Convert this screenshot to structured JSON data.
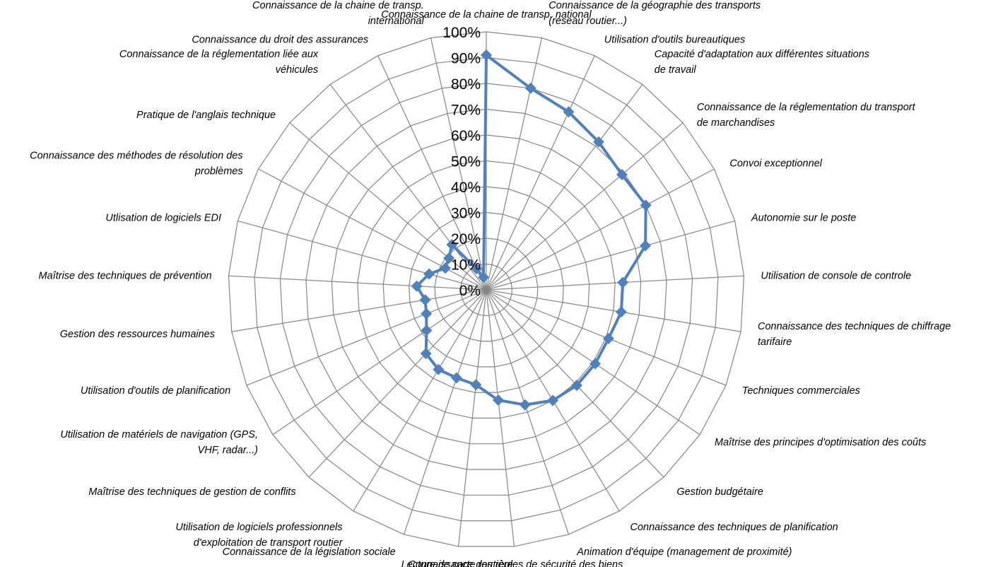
{
  "chart_data": {
    "type": "radar",
    "title": "",
    "grid": true,
    "legend": "none",
    "ylim": [
      0,
      100
    ],
    "tick_labels": [
      "0%",
      "10%",
      "20%",
      "30%",
      "40%",
      "50%",
      "60%",
      "70%",
      "80%",
      "90%",
      "100%"
    ],
    "categories": [
      [
        "Connaissance de la chaine de transp. national"
      ],
      [
        "Connaissance de la géographie des transports",
        "(réseau routier...)"
      ],
      [
        "Utilisation d'outils bureautiques"
      ],
      [
        "Capacité d'adaptation aux différentes situations",
        "de travail"
      ],
      [
        "Connaissance de la réglementation du transport",
        "de marchandises"
      ],
      [
        "Convoi exceptionnel"
      ],
      [
        "Autonomie sur le poste"
      ],
      [
        "Utilisation de console de controle"
      ],
      [
        "Connaissance des techniques de chiffrage",
        "tarifaire"
      ],
      [
        "Techniques commerciales"
      ],
      [
        "Maîtrise des principes d'optimisation des coûts"
      ],
      [
        "Gestion budgétaire"
      ],
      [
        "Connaissance des techniques de planification"
      ],
      [
        "Animation d'équipe (management de proximité)"
      ],
      [
        "Connaissance des règles de sécurité des biens"
      ],
      [
        "Lecture de carte routière"
      ],
      [
        "Connaissance de la législation sociale"
      ],
      [
        "Utilisation de logiciels professionnels",
        "d'exploitation de transport routier"
      ],
      [
        "Maîtrise des techniques de gestion de conflits"
      ],
      [
        "Utilisation de matériels de navigation (GPS,",
        "VHF, radar...)"
      ],
      [
        "Utilisation d'outils de planification"
      ],
      [
        "Gestion des ressources humaines"
      ],
      [
        "Maîtrise des techniques de prévention"
      ],
      [
        "Utlisation de logiciels EDI"
      ],
      [
        "Connaissance des méthodes de résolution des",
        "problèmes"
      ],
      [
        "Pratique de l'anglais technique"
      ],
      [
        "Connaissance de la réglementation liée aux",
        "véhicules"
      ],
      [
        "Connaissance du droit des assurances"
      ],
      [
        "Connaissance de la chaine de transp.",
        "international"
      ]
    ],
    "series": [
      {
        "values": [
          91,
          80,
          76,
          72,
          69,
          70,
          64,
          53,
          53,
          51,
          51,
          51,
          50,
          47,
          43,
          37,
          36,
          36,
          34,
          28,
          25,
          24,
          27,
          23,
          18,
          19,
          22,
          9,
          5
        ]
      }
    ],
    "colors": {
      "series": "#4f81bd",
      "grid": "#868686",
      "text": "#000000"
    }
  }
}
